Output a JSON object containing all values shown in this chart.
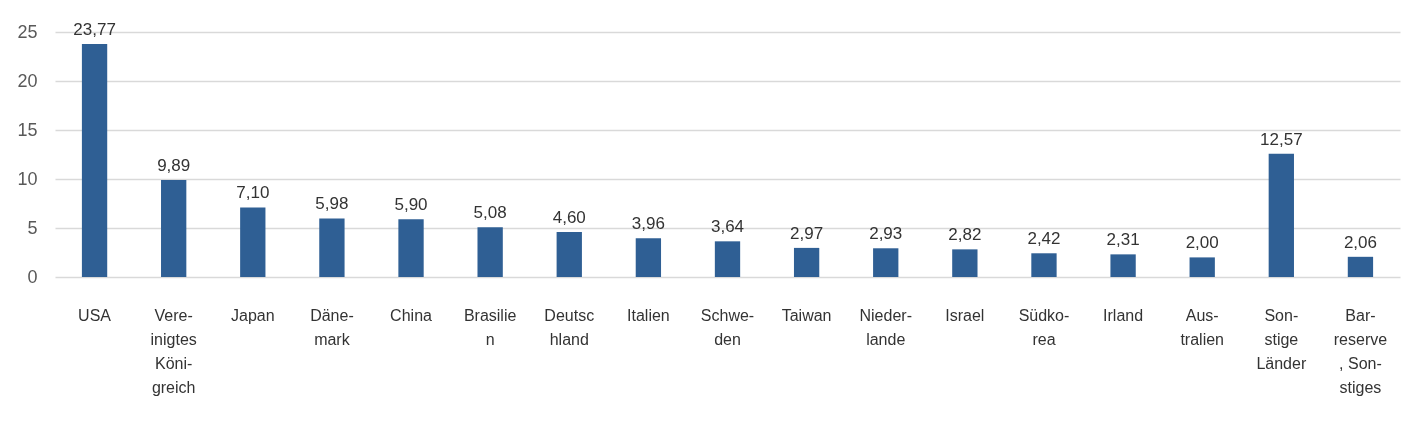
{
  "chart_data": {
    "type": "bar",
    "categories": [
      "USA",
      "Vere-\ninigtes\nKöni-\ngreich",
      "Japan",
      "Däne-\nmark",
      "China",
      "Brasilie\nn",
      "Deutsc\nhland",
      "Italien",
      "Schwe-\nden",
      "Taiwan",
      "Nieder-\nlande",
      "Israel",
      "Südko-\nrea",
      "Irland",
      "Aus-\ntralien",
      "Son-\nstige\nLänder",
      "Bar-\nreserve\n, Son-\nstiges"
    ],
    "values": [
      23.77,
      9.89,
      7.1,
      5.98,
      5.9,
      5.08,
      4.6,
      3.96,
      3.64,
      2.97,
      2.93,
      2.82,
      2.42,
      2.31,
      2.0,
      12.57,
      2.06
    ],
    "value_labels": [
      "23,77",
      "9,89",
      "7,10",
      "5,98",
      "5,90",
      "5,08",
      "4,60",
      "3,96",
      "3,64",
      "2,97",
      "2,93",
      "2,82",
      "2,42",
      "2,31",
      "2,00",
      "12,57",
      "2,06"
    ],
    "color": "#2f5f94",
    "ylim": [
      0,
      25
    ],
    "yticks": [
      0,
      5,
      10,
      15,
      20,
      25
    ],
    "grid": "y"
  }
}
